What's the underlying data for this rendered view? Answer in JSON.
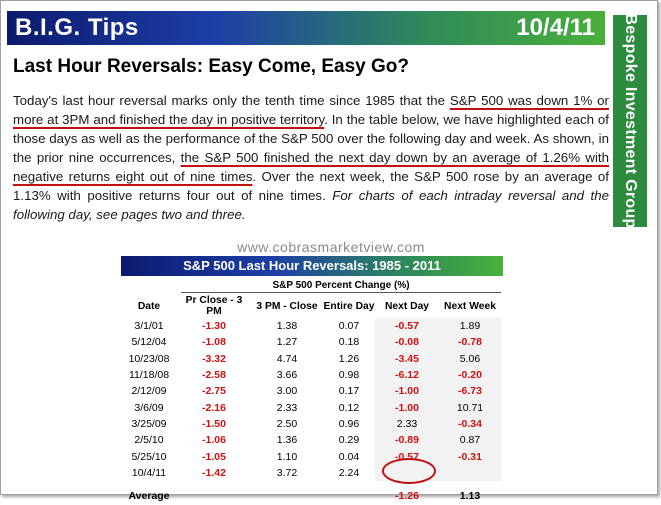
{
  "header": {
    "brand": "B.I.G. Tips",
    "date": "10/4/11"
  },
  "sidebar": {
    "label": "Bespoke Investment Group"
  },
  "headline": "Last Hour Reversals: Easy Come, Easy Go?",
  "body": {
    "s1": "Today's last hour reversal marks only the tenth time since 1985 that the ",
    "u1": "S&P 500 was down 1% or more at 3PM and finished the day in positive territory",
    "s2": ".  In the table below, we have highlighted each of those days as well as the performance of the S&P 500 over the following day and week.  As shown, in the prior nine occurrences, ",
    "u2": "the S&P 500 finished the next day down by an average of 1.26% with negative returns eight out of nine times",
    "s3": ".  Over the next week, the S&P 500 rose by an average of 1.13% with positive returns four out of nine times.  ",
    "italic": "For charts of each intraday reversal and the following day, see pages two and three."
  },
  "watermark": "www.cobrasmarketview.com",
  "table": {
    "title": "S&P 500 Last Hour Reversals: 1985 - 2011",
    "subtitle": "S&P 500 Percent Change (%)",
    "headers": [
      "Date",
      "Pr Close - 3 PM",
      "3 PM - Close",
      "Entire Day",
      "Next Day",
      "Next Week"
    ],
    "rows": [
      [
        "3/1/01",
        "-1.30",
        "1.38",
        "0.07",
        "-0.57",
        "1.89"
      ],
      [
        "5/12/04",
        "-1.08",
        "1.27",
        "0.18",
        "-0.08",
        "-0.78"
      ],
      [
        "10/23/08",
        "-3.32",
        "4.74",
        "1.26",
        "-3.45",
        "5.06"
      ],
      [
        "11/18/08",
        "-2.58",
        "3.66",
        "0.98",
        "-6.12",
        "-0.20"
      ],
      [
        "2/12/09",
        "-2.75",
        "3.00",
        "0.17",
        "-1.00",
        "-6.73"
      ],
      [
        "3/6/09",
        "-2.16",
        "2.33",
        "0.12",
        "-1.00",
        "10.71"
      ],
      [
        "3/25/09",
        "-1.50",
        "2.50",
        "0.96",
        "2.33",
        "-0.34"
      ],
      [
        "2/5/10",
        "-1.06",
        "1.36",
        "0.29",
        "-0.89",
        "0.87"
      ],
      [
        "5/25/10",
        "-1.05",
        "1.10",
        "0.04",
        "-0.57",
        "-0.31"
      ],
      [
        "10/4/11",
        "-1.42",
        "3.72",
        "2.24",
        "",
        ""
      ]
    ],
    "average": {
      "label": "Average",
      "next_day": "-1.26",
      "next_week": "1.13"
    }
  },
  "colors": {
    "negative": "#d01010",
    "sidebar": "#2d8a3e",
    "underline": "#c01010"
  }
}
